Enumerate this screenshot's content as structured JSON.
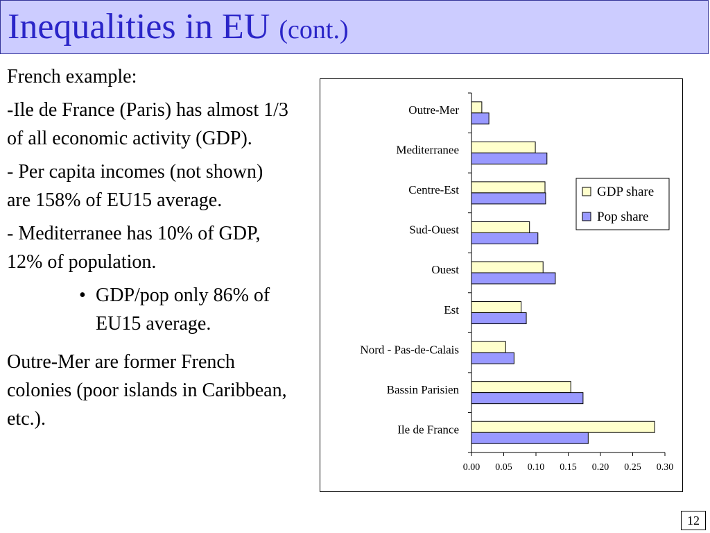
{
  "slide": {
    "title": "Inequalities in EU",
    "title_suffix": "(cont.)",
    "page_number": "12"
  },
  "text": {
    "intro": "French example:",
    "point1": "-Ile de France (Paris) has almost 1/3 of all economic activity (GDP).",
    "point2": "- Per capita incomes (not shown) are 158% of EU15 average.",
    "point3": "- Mediterranee has 10% of GDP, 12% of population.",
    "bullet1": "GDP/pop only 86% of EU15 average.",
    "outro": "Outre-Mer are former French colonies (poor islands in Caribbean, etc.)."
  },
  "chart_data": {
    "type": "bar",
    "orientation": "horizontal",
    "categories": [
      "Outre-Mer",
      "Mediterranee",
      "Centre-Est",
      "Sud-Ouest",
      "Ouest",
      "Est",
      "Nord - Pas-de-Calais",
      "Bassin Parisien",
      "Ile de France"
    ],
    "series": [
      {
        "name": "GDP share",
        "color": "#ffffcc",
        "values": [
          0.016,
          0.099,
          0.114,
          0.09,
          0.111,
          0.077,
          0.053,
          0.154,
          0.284
        ]
      },
      {
        "name": "Pop share",
        "color": "#9999ff",
        "values": [
          0.027,
          0.117,
          0.115,
          0.103,
          0.13,
          0.085,
          0.066,
          0.173,
          0.181
        ]
      }
    ],
    "xlim": [
      0,
      0.3
    ],
    "xticks": [
      "0.00",
      "0.05",
      "0.10",
      "0.15",
      "0.20",
      "0.25",
      "0.30"
    ],
    "grid": false,
    "legend_position": "right"
  }
}
